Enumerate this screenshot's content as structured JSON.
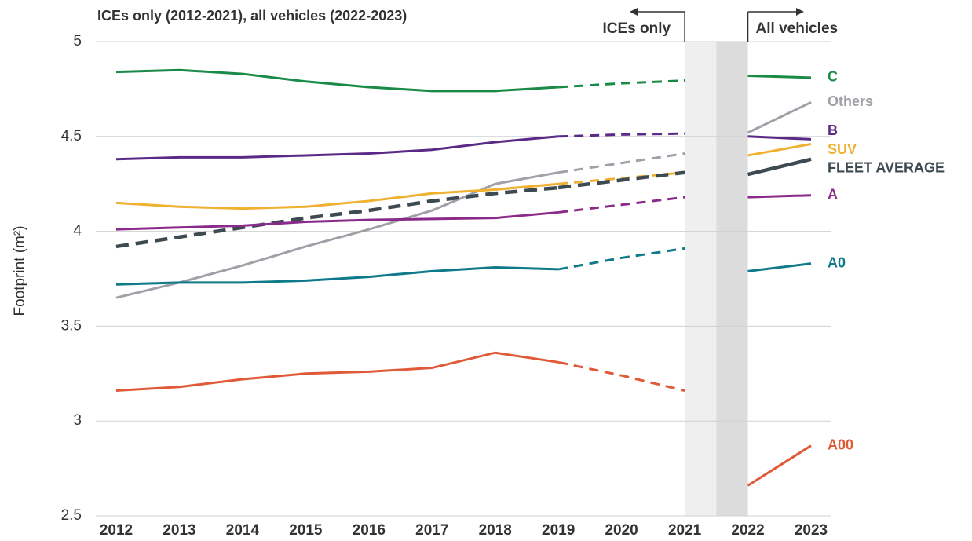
{
  "chart_data": {
    "type": "line",
    "title": "ICEs only (2012-2021), all vehicles (2022-2023)",
    "y_label": "Footprint (m²)",
    "annotations": [
      "ICEs only",
      "All vehicles"
    ],
    "x": [
      2012,
      2013,
      2014,
      2015,
      2016,
      2017,
      2018,
      2019,
      2020,
      2021,
      2022,
      2023
    ],
    "xlim": [
      2012,
      2023
    ],
    "xticks": [
      2012,
      2013,
      2014,
      2015,
      2016,
      2017,
      2018,
      2019,
      2020,
      2021,
      2022,
      2023
    ],
    "ylim": [
      2.5,
      5
    ],
    "yticks": [
      2.5,
      3,
      3.5,
      4,
      4.5,
      5
    ],
    "grid": true,
    "dashed_from": 2019,
    "break": [
      2021,
      2022
    ],
    "series": [
      {
        "name": "C",
        "color": "#1a8a47",
        "values": [
          4.84,
          4.85,
          4.83,
          4.79,
          4.76,
          4.74,
          4.74,
          4.76,
          4.78,
          4.795,
          4.82,
          4.81
        ]
      },
      {
        "name": "Others",
        "color": "#a0a0a8",
        "values": [
          3.65,
          3.73,
          3.82,
          3.92,
          4.01,
          4.11,
          4.25,
          4.31,
          4.36,
          4.41,
          4.52,
          4.68
        ]
      },
      {
        "name": "B",
        "color": "#5b2a86",
        "values": [
          4.38,
          4.39,
          4.39,
          4.4,
          4.41,
          4.43,
          4.47,
          4.5,
          4.51,
          4.515,
          4.5,
          4.485
        ]
      },
      {
        "name": "SUV",
        "color": "#f0b030",
        "values": [
          4.15,
          4.13,
          4.12,
          4.13,
          4.16,
          4.2,
          4.22,
          4.25,
          4.28,
          4.31,
          4.4,
          4.46
        ]
      },
      {
        "name": "FLEET AVERAGE",
        "color": "#3d4a52",
        "style": "dashed",
        "values": [
          3.92,
          3.97,
          4.02,
          4.07,
          4.11,
          4.16,
          4.2,
          4.23,
          4.27,
          4.31,
          4.3,
          4.38
        ]
      },
      {
        "name": "A",
        "color": "#8a2a8a",
        "values": [
          4.01,
          4.02,
          4.03,
          4.05,
          4.06,
          4.065,
          4.07,
          4.1,
          4.14,
          4.18,
          4.18,
          4.19
        ]
      },
      {
        "name": "A0",
        "color": "#0f7a8a",
        "values": [
          3.72,
          3.73,
          3.73,
          3.74,
          3.76,
          3.79,
          3.81,
          3.8,
          3.86,
          3.91,
          3.79,
          3.83
        ]
      },
      {
        "name": "A00",
        "color": "#e05a3a",
        "values": [
          3.16,
          3.18,
          3.22,
          3.25,
          3.26,
          3.28,
          3.36,
          3.31,
          3.24,
          3.16,
          2.66,
          2.87
        ]
      }
    ]
  }
}
